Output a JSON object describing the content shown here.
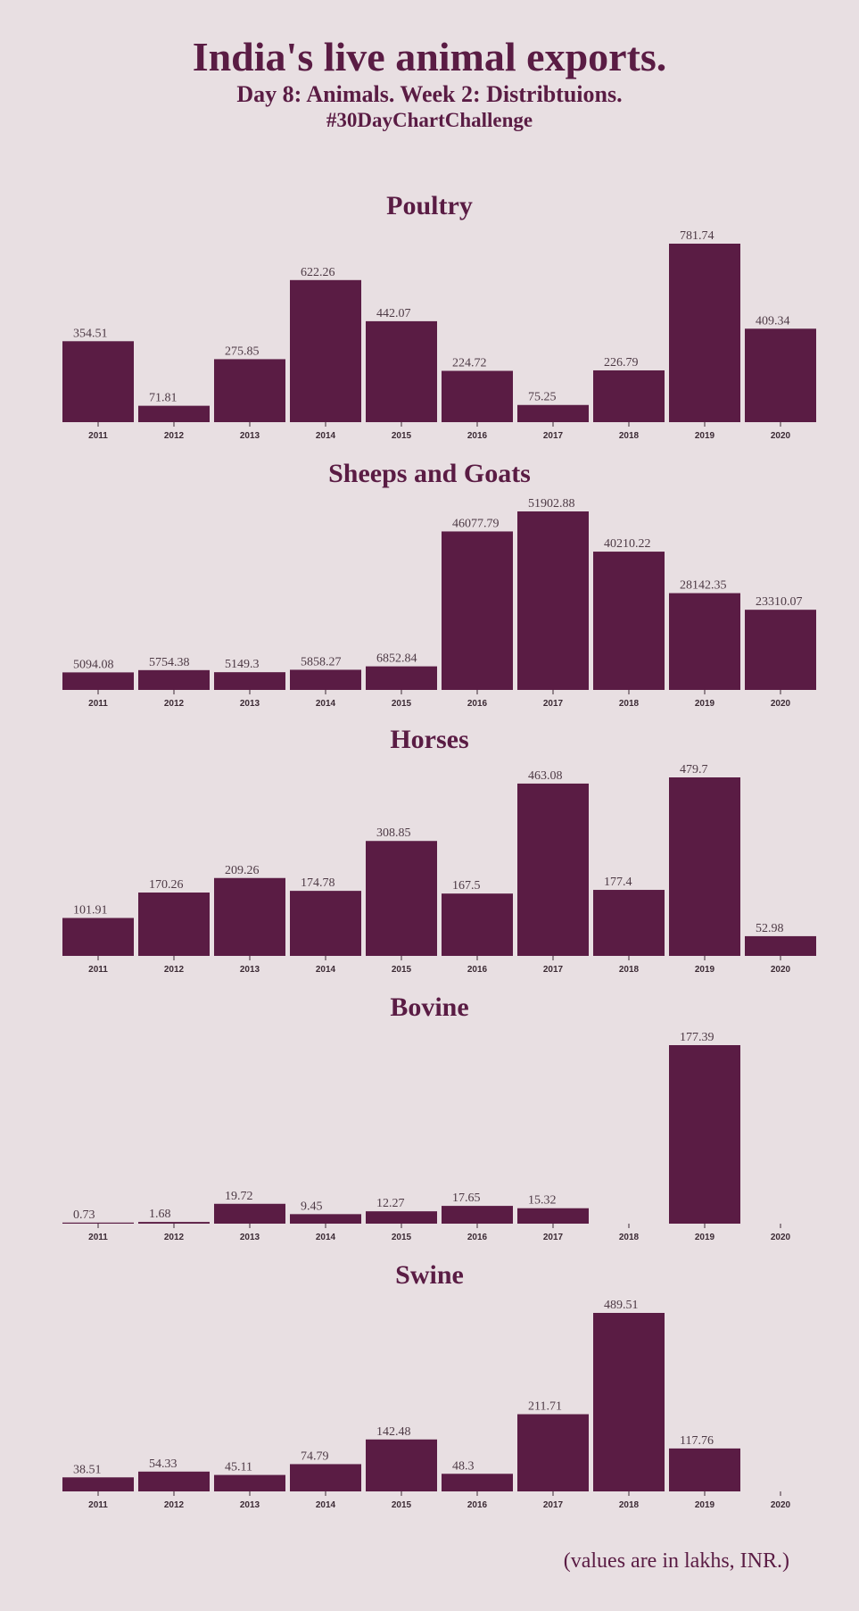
{
  "title": "India's live animal exports.",
  "subtitle": "Day 8: Animals. Week 2: Distribtuions.",
  "hashtag": "#30DayChartChallenge",
  "footnote": "(values are in lakhs, INR.)",
  "colors": {
    "background": "#e8dfe2",
    "bar": "#5a1c44",
    "text": "#5a1c44"
  },
  "chart_data": [
    {
      "type": "bar",
      "title": "Poultry",
      "categories": [
        "2011",
        "2012",
        "2013",
        "2014",
        "2015",
        "2016",
        "2017",
        "2018",
        "2019",
        "2020"
      ],
      "values": [
        354.51,
        71.81,
        275.85,
        622.26,
        442.07,
        224.72,
        75.25,
        226.79,
        781.74,
        409.34
      ],
      "labels": [
        "354.51",
        "71.81",
        "275.85",
        "622.26",
        "442.07",
        "224.72",
        "75.25",
        "226.79",
        "781.74",
        "409.34"
      ]
    },
    {
      "type": "bar",
      "title": "Sheeps and Goats",
      "categories": [
        "2011",
        "2012",
        "2013",
        "2014",
        "2015",
        "2016",
        "2017",
        "2018",
        "2019",
        "2020"
      ],
      "values": [
        5094.08,
        5754.38,
        5149.3,
        5858.27,
        6852.84,
        46077.79,
        51902.88,
        40210.22,
        28142.35,
        23310.07
      ],
      "labels": [
        "5094.08",
        "5754.38",
        "5149.3",
        "5858.27",
        "6852.84",
        "46077.79",
        "51902.88",
        "40210.22",
        "28142.35",
        "23310.07"
      ]
    },
    {
      "type": "bar",
      "title": "Horses",
      "categories": [
        "2011",
        "2012",
        "2013",
        "2014",
        "2015",
        "2016",
        "2017",
        "2018",
        "2019",
        "2020"
      ],
      "values": [
        101.91,
        170.26,
        209.26,
        174.78,
        308.85,
        167.5,
        463.08,
        177.4,
        479.7,
        52.98
      ],
      "labels": [
        "101.91",
        "170.26",
        "209.26",
        "174.78",
        "308.85",
        "167.5",
        "463.08",
        "177.4",
        "479.7",
        "52.98"
      ]
    },
    {
      "type": "bar",
      "title": "Bovine",
      "categories": [
        "2011",
        "2012",
        "2013",
        "2014",
        "2015",
        "2016",
        "2017",
        "2018",
        "2019",
        "2020"
      ],
      "values": [
        0.73,
        1.68,
        19.72,
        9.45,
        12.27,
        17.65,
        15.32,
        null,
        177.39,
        null
      ],
      "labels": [
        "0.73",
        "1.68",
        "19.72",
        "9.45",
        "12.27",
        "17.65",
        "15.32",
        "",
        "177.39",
        ""
      ]
    },
    {
      "type": "bar",
      "title": "Swine",
      "categories": [
        "2011",
        "2012",
        "2013",
        "2014",
        "2015",
        "2016",
        "2017",
        "2018",
        "2019",
        "2020"
      ],
      "values": [
        38.51,
        54.33,
        45.11,
        74.79,
        142.48,
        48.3,
        211.71,
        489.51,
        117.76,
        null
      ],
      "labels": [
        "38.51",
        "54.33",
        "45.11",
        "74.79",
        "142.48",
        "48.3",
        "211.71",
        "489.51",
        "117.76",
        ""
      ]
    }
  ]
}
